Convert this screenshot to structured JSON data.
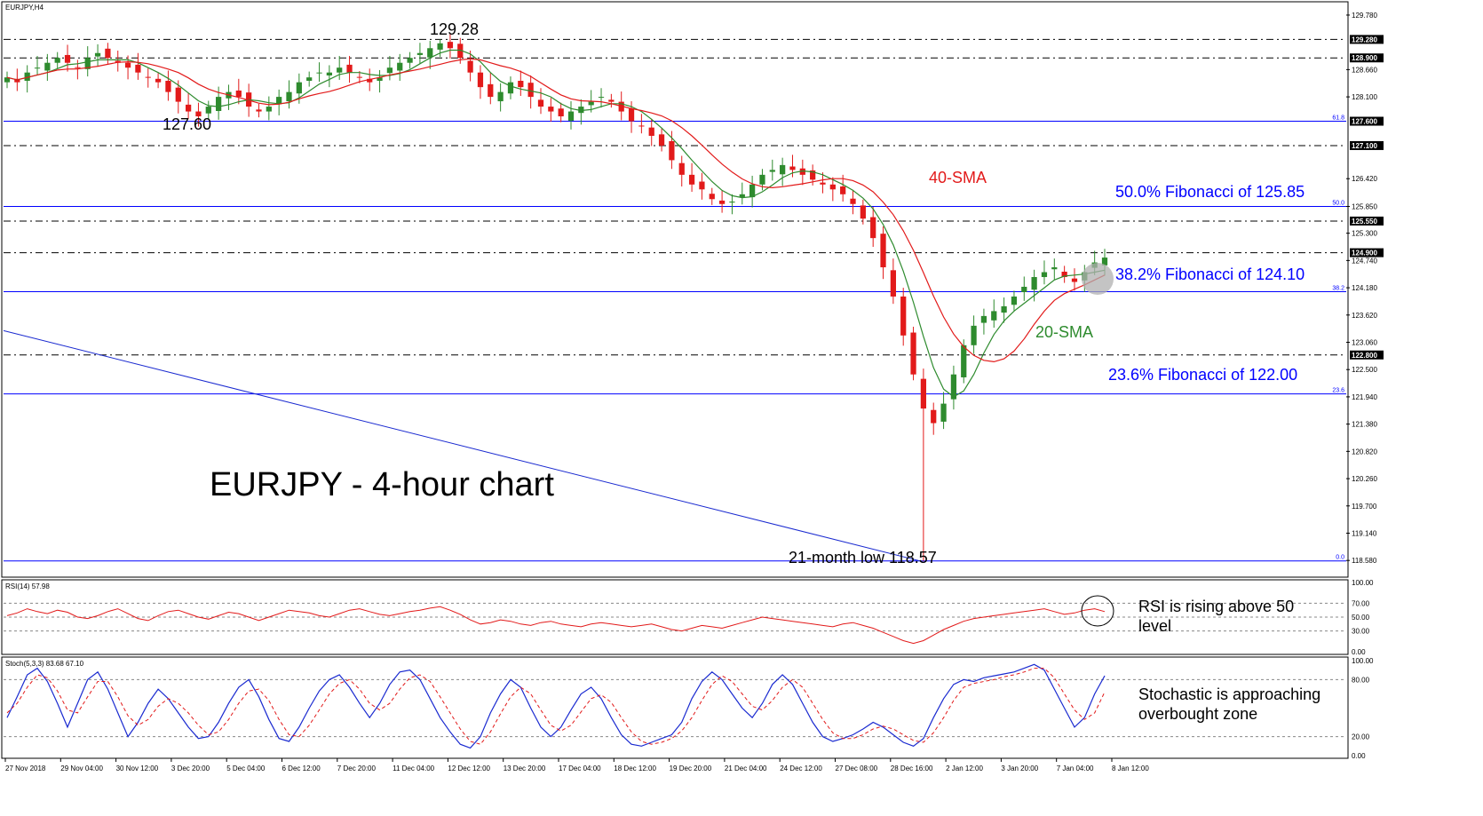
{
  "chart_data": {
    "type": "candlestick",
    "symbol_label": "EURJPY,H4",
    "title": "EURJPY - 4-hour chart",
    "price_axis": {
      "ylim": [
        118.31,
        129.98
      ],
      "ticks": [
        "129.780",
        "129.280",
        "128.900",
        "128.660",
        "128.100",
        "127.600",
        "127.100",
        "126.420",
        "125.850",
        "125.550",
        "125.300",
        "124.900",
        "124.740",
        "124.180",
        "123.620",
        "123.060",
        "122.800",
        "122.500",
        "121.940",
        "121.380",
        "120.820",
        "120.260",
        "119.700",
        "119.140",
        "118.580"
      ],
      "highlighted": [
        "129.280",
        "128.900",
        "127.600",
        "127.100",
        "125.550",
        "124.900",
        "122.800"
      ]
    },
    "time_axis": [
      "27 Nov 2018",
      "29 Nov 04:00",
      "30 Nov 12:00",
      "3 Dec 20:00",
      "5 Dec 04:00",
      "6 Dec 12:00",
      "7 Dec 20:00",
      "11 Dec 04:00",
      "12 Dec 12:00",
      "13 Dec 20:00",
      "17 Dec 04:00",
      "18 Dec 12:00",
      "19 Dec 20:00",
      "21 Dec 04:00",
      "24 Dec 12:00",
      "27 Dec 08:00",
      "28 Dec 16:00",
      "2 Jan 12:00",
      "3 Jan 20:00",
      "7 Jan 04:00",
      "8 Jan 12:00"
    ],
    "price_series": [
      128.5,
      128.4,
      128.6,
      128.7,
      128.8,
      128.9,
      128.8,
      128.7,
      128.9,
      129.0,
      128.9,
      128.8,
      128.7,
      128.6,
      128.5,
      128.4,
      128.2,
      128.0,
      127.8,
      127.7,
      127.9,
      128.1,
      128.2,
      128.1,
      127.9,
      127.8,
      127.9,
      128.1,
      128.2,
      128.4,
      128.5,
      128.6,
      128.6,
      128.7,
      128.6,
      128.5,
      128.4,
      128.5,
      128.7,
      128.8,
      128.9,
      129.0,
      129.1,
      129.2,
      129.1,
      128.9,
      128.6,
      128.3,
      128.1,
      128.2,
      128.4,
      128.3,
      128.1,
      127.9,
      127.8,
      127.7,
      127.8,
      127.9,
      128.0,
      128.1,
      128.0,
      127.8,
      127.6,
      127.5,
      127.3,
      127.1,
      126.8,
      126.5,
      126.3,
      126.2,
      126.0,
      125.9,
      125.95,
      126.1,
      126.3,
      126.5,
      126.6,
      126.7,
      126.6,
      126.5,
      126.4,
      126.3,
      126.2,
      126.1,
      125.9,
      125.6,
      125.2,
      124.6,
      124.0,
      123.2,
      122.4,
      121.7,
      121.4,
      121.8,
      122.4,
      123.0,
      123.4,
      123.6,
      123.7,
      123.8,
      124.0,
      124.2,
      124.4,
      124.5,
      124.6,
      124.4,
      124.3,
      124.5,
      124.7,
      124.8
    ],
    "lows": [
      {
        "label": "127.60",
        "value": 127.6
      },
      {
        "label": "21-month low 118.57",
        "value": 118.57
      }
    ],
    "highs": [
      {
        "label": "129.28",
        "value": 129.28
      }
    ],
    "sma20_label": "20-SMA",
    "sma40_label": "40-SMA",
    "fibonacci": [
      {
        "label": "50.0% Fibonacci of 125.85",
        "level": 125.85,
        "tag": "50.0"
      },
      {
        "label": "38.2% Fibonacci of 124.10",
        "level": 124.1,
        "tag": "38.2"
      },
      {
        "label": "23.6% Fibonacci of 122.00",
        "level": 122.0,
        "tag": "23.6"
      },
      {
        "level": 127.6,
        "tag": "61.8"
      },
      {
        "level": 118.57,
        "tag": "0.0"
      }
    ],
    "rsi": {
      "header": "RSI(14) 57.98",
      "ticks": [
        "100.00",
        "70.00",
        "50.00",
        "30.00",
        "0.00"
      ],
      "annotation_line1": "RSI is rising above 50",
      "annotation_line2": "level",
      "values": [
        52,
        56,
        62,
        58,
        55,
        60,
        57,
        50,
        48,
        52,
        58,
        62,
        55,
        48,
        45,
        52,
        58,
        60,
        55,
        50,
        47,
        52,
        57,
        55,
        50,
        45,
        50,
        55,
        60,
        58,
        56,
        52,
        50,
        55,
        60,
        62,
        58,
        54,
        52,
        55,
        58,
        60,
        63,
        65,
        60,
        54,
        46,
        40,
        42,
        46,
        44,
        40,
        38,
        42,
        44,
        40,
        38,
        36,
        40,
        42,
        40,
        38,
        36,
        38,
        40,
        36,
        32,
        30,
        34,
        38,
        36,
        34,
        38,
        42,
        46,
        50,
        48,
        46,
        44,
        42,
        40,
        38,
        36,
        40,
        42,
        38,
        34,
        28,
        22,
        16,
        12,
        16,
        24,
        32,
        38,
        44,
        48,
        50,
        52,
        54,
        56,
        58,
        60,
        62,
        58,
        54,
        56,
        60,
        62,
        58
      ]
    },
    "stoch": {
      "header": "Stoch(5,3,3) 83.68 67.10",
      "ticks": [
        "100.00",
        "80.00",
        "20.00",
        "0.00"
      ],
      "annotation_line1": "Stochastic is approaching",
      "annotation_line2": "overbought zone",
      "main": [
        40,
        62,
        85,
        92,
        78,
        55,
        30,
        55,
        80,
        88,
        70,
        45,
        20,
        35,
        55,
        70,
        60,
        45,
        30,
        18,
        20,
        35,
        55,
        72,
        80,
        62,
        38,
        18,
        15,
        30,
        50,
        68,
        80,
        85,
        72,
        55,
        40,
        55,
        75,
        88,
        90,
        80,
        60,
        40,
        25,
        12,
        8,
        20,
        45,
        65,
        80,
        72,
        50,
        30,
        20,
        30,
        48,
        65,
        72,
        60,
        40,
        22,
        12,
        10,
        14,
        18,
        22,
        35,
        60,
        78,
        88,
        80,
        65,
        50,
        40,
        55,
        75,
        85,
        75,
        55,
        35,
        20,
        15,
        18,
        22,
        28,
        35,
        30,
        22,
        14,
        10,
        18,
        40,
        60,
        75,
        80,
        78,
        82,
        84,
        86,
        88,
        92,
        96,
        90,
        70,
        50,
        30,
        40,
        65,
        84
      ],
      "signal": [
        45,
        55,
        72,
        85,
        82,
        68,
        48,
        45,
        62,
        78,
        78,
        62,
        42,
        32,
        38,
        52,
        60,
        55,
        45,
        32,
        22,
        25,
        38,
        55,
        68,
        70,
        58,
        38,
        22,
        20,
        32,
        48,
        65,
        76,
        80,
        70,
        55,
        48,
        55,
        70,
        82,
        85,
        78,
        62,
        45,
        28,
        15,
        12,
        25,
        44,
        62,
        72,
        65,
        48,
        32,
        26,
        32,
        46,
        60,
        64,
        56,
        40,
        25,
        15,
        12,
        14,
        18,
        26,
        40,
        58,
        75,
        84,
        78,
        65,
        52,
        48,
        58,
        72,
        80,
        72,
        55,
        38,
        24,
        18,
        18,
        22,
        28,
        31,
        28,
        22,
        16,
        14,
        24,
        40,
        58,
        72,
        76,
        78,
        80,
        83,
        85,
        88,
        92,
        92,
        82,
        65,
        48,
        38,
        45,
        67
      ]
    },
    "colors": {
      "bull": "#2e8b2e",
      "bear": "#e21a1a",
      "sma20": "#2e8b2e",
      "sma40": "#e21a1a",
      "fib_line": "#0000ff",
      "trendline": "#1a2ad0",
      "rsi_line": "#e21a1a",
      "stoch_main": "#1a2ad0",
      "stoch_signal": "#e21a1a",
      "tag_bg": "#000000"
    }
  }
}
